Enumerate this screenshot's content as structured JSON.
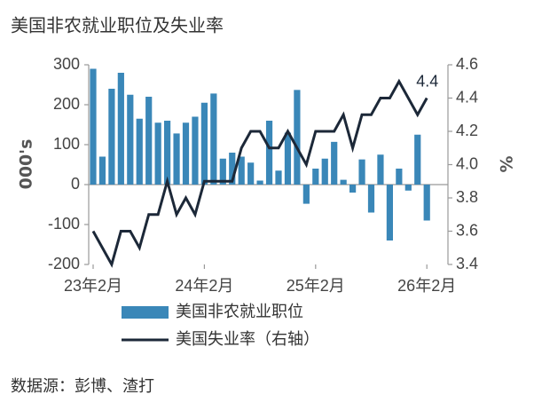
{
  "chart_data": {
    "type": "bar-line",
    "title": "美国非农就业职位及失业率",
    "y_label": "000's",
    "y2_label": "%",
    "source": "数据源：彭博、渣打",
    "annotation": "4.4",
    "categories": [
      "23年2月",
      null,
      null,
      null,
      null,
      null,
      null,
      null,
      null,
      null,
      null,
      null,
      "24年2月",
      null,
      null,
      null,
      null,
      null,
      null,
      null,
      null,
      null,
      null,
      null,
      "25年2月",
      null,
      null,
      null,
      null,
      null,
      null,
      null,
      null,
      null,
      null,
      null,
      "26年2月"
    ],
    "series": [
      {
        "name": "美国非农就业职位",
        "type": "bar",
        "color": "#3a87b8",
        "values": [
          290,
          70,
          240,
          280,
          225,
          165,
          220,
          155,
          160,
          128,
          155,
          170,
          205,
          228,
          65,
          80,
          70,
          55,
          10,
          160,
          35,
          130,
          237,
          -48,
          40,
          65,
          107,
          12,
          -20,
          63,
          -70,
          75,
          -140,
          40,
          -15,
          125,
          -90
        ]
      },
      {
        "name": "美国失业率（右轴）",
        "type": "line",
        "axis": "y2",
        "color": "#1c2838",
        "values": [
          3.6,
          3.5,
          3.4,
          3.6,
          3.6,
          3.5,
          3.7,
          3.7,
          3.9,
          3.7,
          3.8,
          3.7,
          3.9,
          3.9,
          3.9,
          3.9,
          4.1,
          4.2,
          4.2,
          4.1,
          4.1,
          4.2,
          4.1,
          4.0,
          4.2,
          4.2,
          4.2,
          4.3,
          4.1,
          4.3,
          4.3,
          4.4,
          4.4,
          4.5,
          4.4,
          4.3,
          4.4
        ]
      }
    ],
    "ylim": [
      -200,
      300
    ],
    "yticks": [
      -200,
      -100,
      0,
      100,
      200,
      300
    ],
    "y2lim": [
      3.4,
      4.6
    ],
    "y2ticks": [
      3.4,
      3.6,
      3.8,
      {
        "value": 4,
        "label": "4.0"
      },
      4.2,
      4.4,
      4.6
    ],
    "grid": false
  }
}
